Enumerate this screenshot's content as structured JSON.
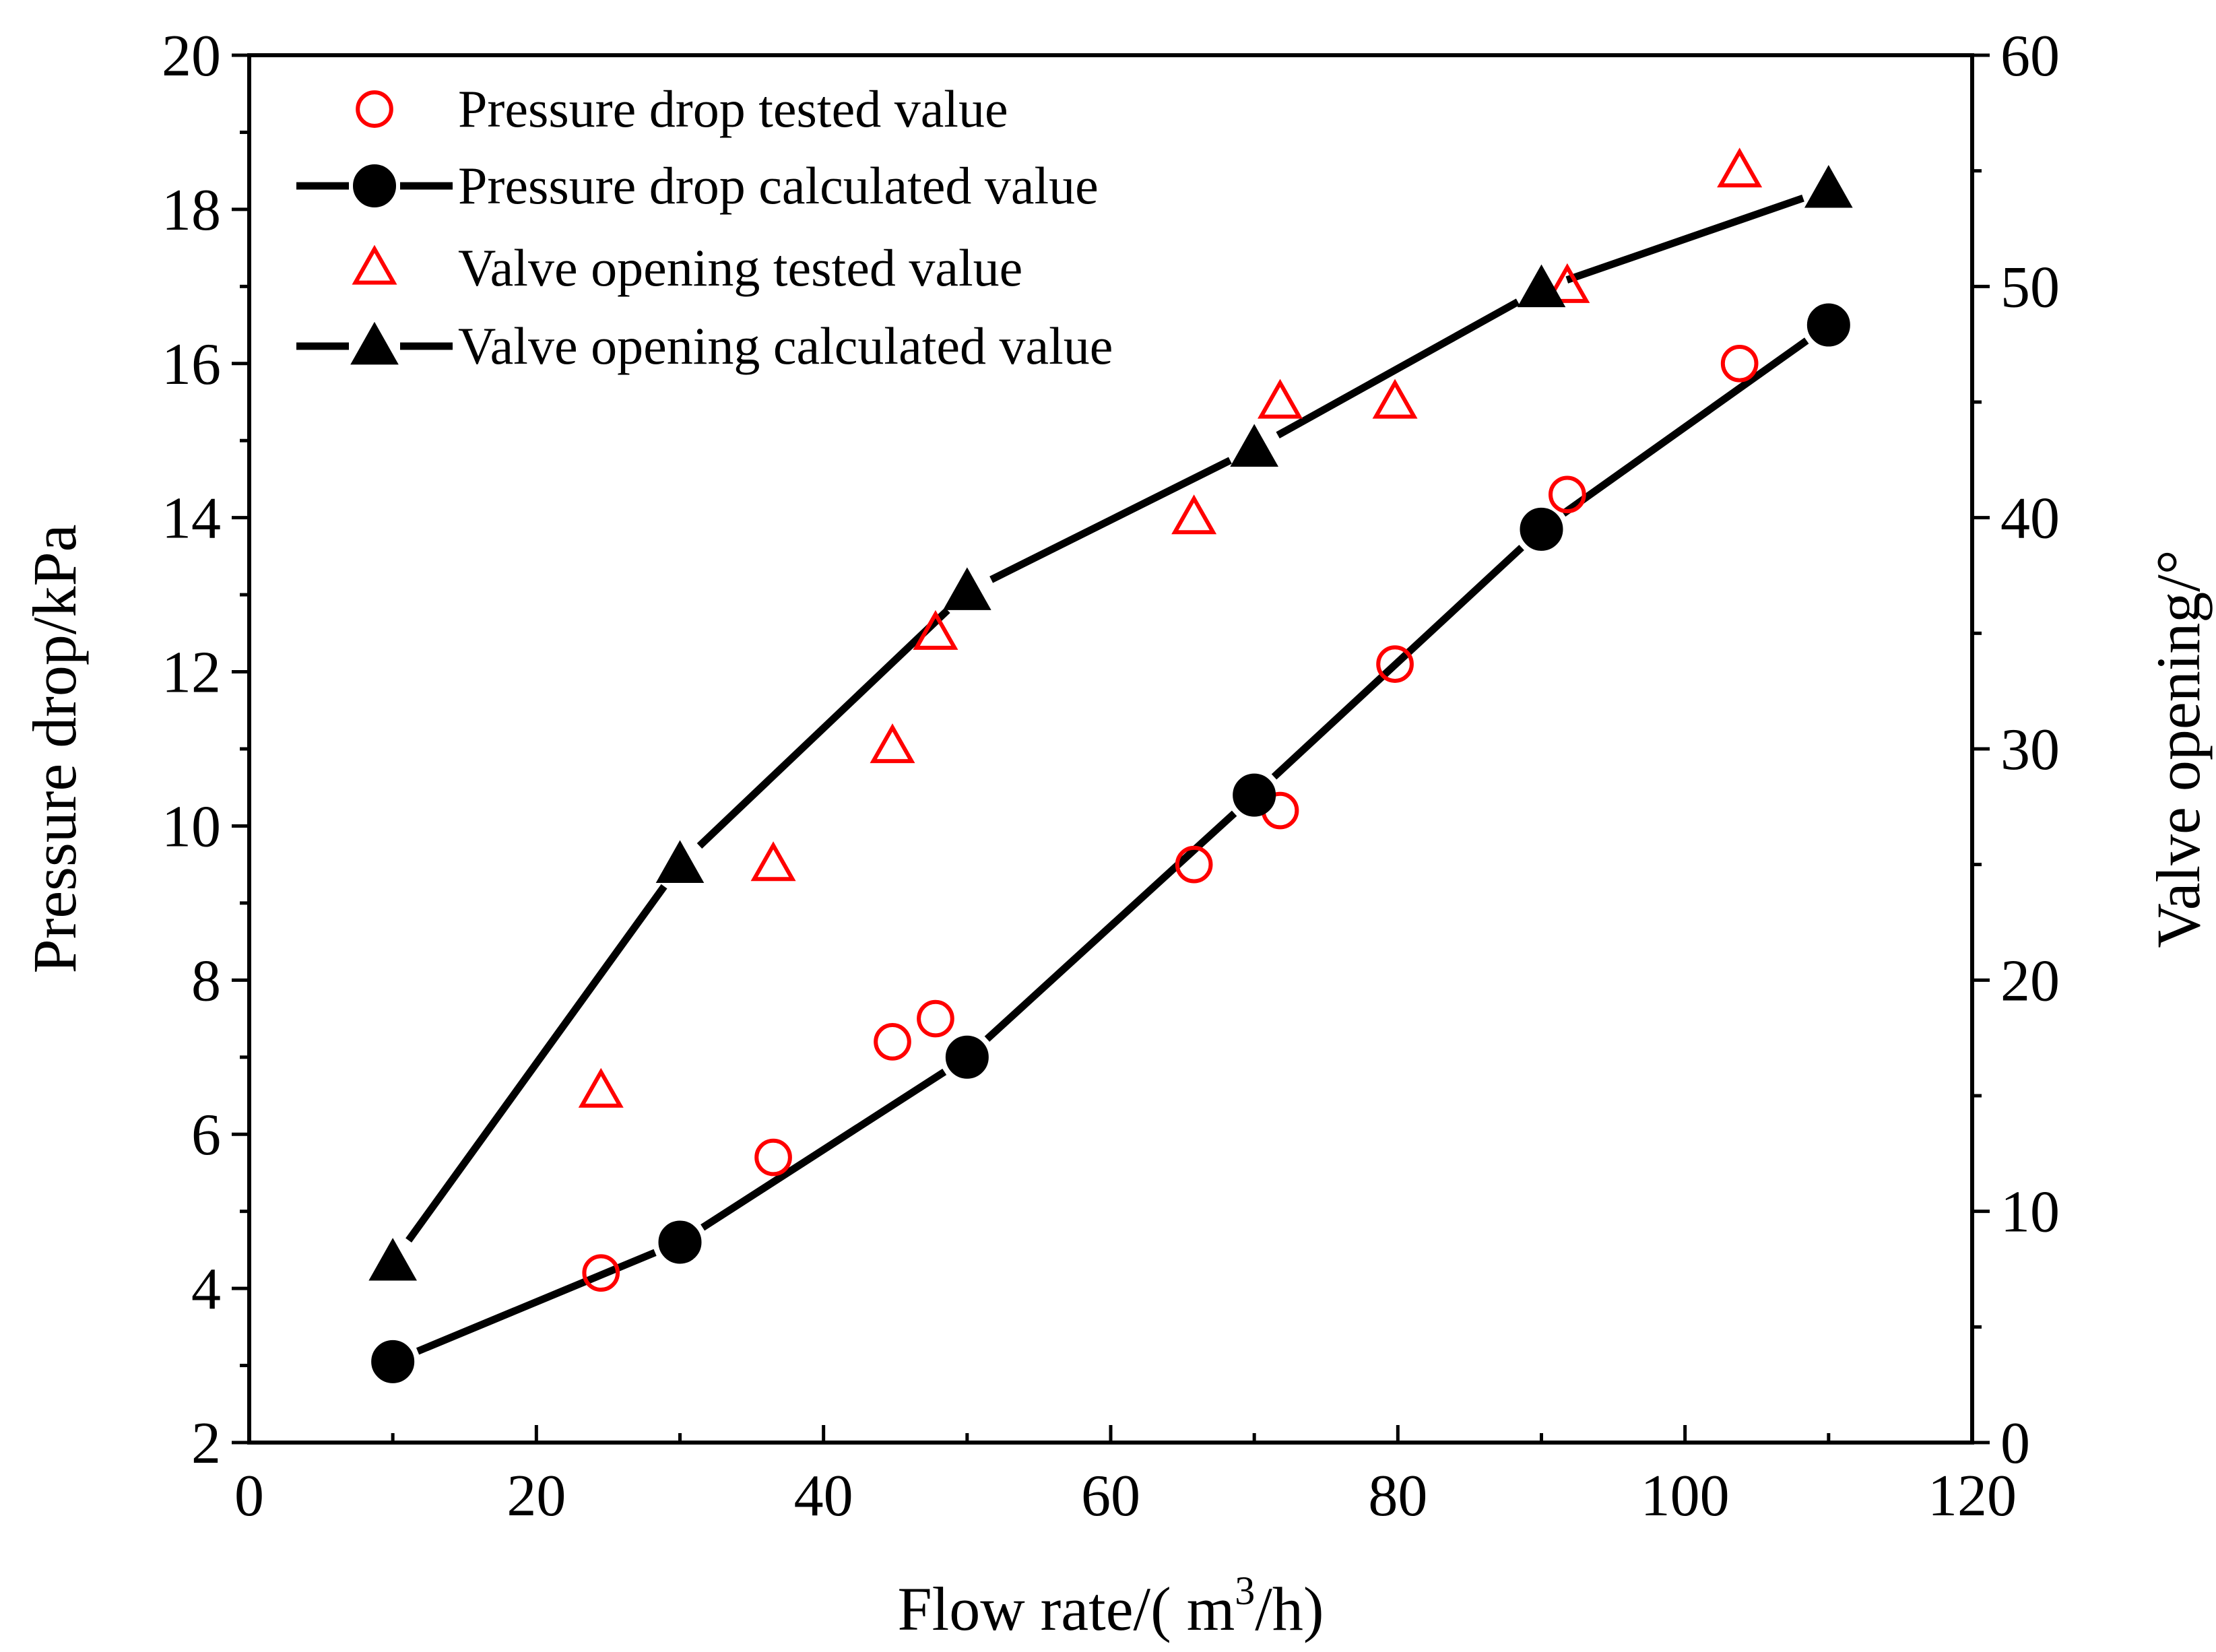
{
  "chart_data": {
    "type": "line",
    "title": "",
    "xlabel": "Flow rate/( m³/h)",
    "xlabel_parts": {
      "prefix": "Flow rate/( m",
      "superscript": "3",
      "suffix": "/h)"
    },
    "ylabel": "Pressure drop/kPa",
    "y2label": "Valve opening/°",
    "xlim": [
      0,
      120
    ],
    "ylim": [
      2,
      20
    ],
    "y2lim": [
      0,
      60
    ],
    "xticks": [
      0,
      20,
      40,
      60,
      80,
      100,
      120
    ],
    "yticks": [
      2,
      4,
      6,
      8,
      10,
      12,
      14,
      16,
      18,
      20
    ],
    "y2ticks": [
      0,
      10,
      20,
      30,
      40,
      50,
      60
    ],
    "grid": false,
    "legend_position": "top-left",
    "series": [
      {
        "name": "Pressure drop tested value",
        "axis": "left",
        "marker": "circle-open",
        "line": false,
        "color": "#ff0000",
        "x": [
          24.5,
          36.5,
          44.8,
          47.8,
          65.8,
          71.8,
          79.8,
          91.8,
          103.8
        ],
        "y": [
          4.2,
          5.7,
          7.2,
          7.5,
          9.5,
          10.2,
          12.1,
          14.3,
          16.0
        ]
      },
      {
        "name": "Pressure drop calculated value",
        "axis": "left",
        "marker": "circle-filled",
        "line": true,
        "color": "#000000",
        "x": [
          10,
          30,
          50,
          70,
          90,
          110
        ],
        "y": [
          3.05,
          4.6,
          7.0,
          10.4,
          13.85,
          16.5
        ]
      },
      {
        "name": "Valve opening tested value",
        "axis": "right",
        "marker": "triangle-open",
        "line": false,
        "color": "#ff0000",
        "x": [
          24.5,
          36.5,
          44.8,
          47.8,
          65.8,
          71.8,
          79.8,
          91.8,
          103.8
        ],
        "y": [
          15.2,
          25.0,
          30.1,
          35.0,
          40.0,
          45.0,
          45.0,
          50.0,
          55.0
        ]
      },
      {
        "name": "Valve opening calculated value",
        "axis": "right",
        "marker": "triangle-filled",
        "line": true,
        "color": "#000000",
        "x": [
          10,
          30,
          50,
          70,
          90,
          110
        ],
        "y": [
          7.8,
          25.0,
          36.8,
          43.0,
          49.9,
          54.2
        ]
      }
    ]
  }
}
